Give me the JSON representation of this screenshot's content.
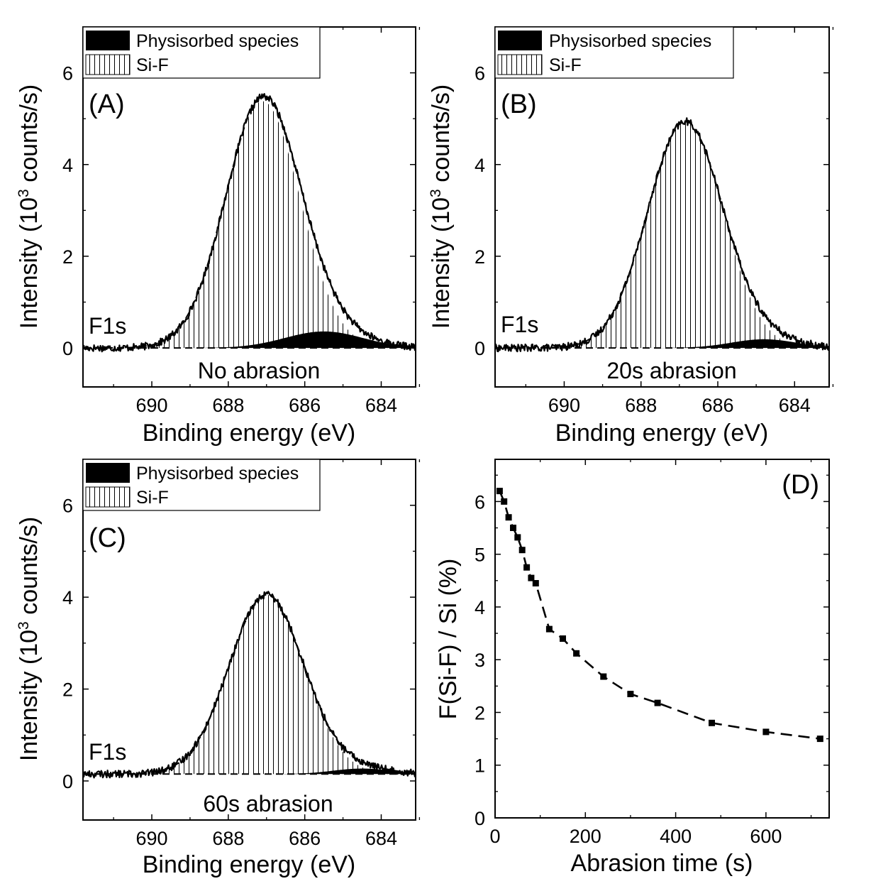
{
  "chart_data": [
    {
      "type": "area",
      "panel_label": "(A)",
      "spectrum_label": "F1s",
      "condition_label": "No abrasion",
      "xlabel": "Binding energy (eV)",
      "ylabel": {
        "prefix": "Intensity (10",
        "sup": "3",
        "suffix": " counts/s)"
      },
      "xlim": [
        691.8,
        683.1
      ],
      "ylim": [
        -0.85,
        7.0
      ],
      "xticks": [
        "690",
        "688",
        "686",
        "684"
      ],
      "yticks": [
        "0",
        "2",
        "4",
        "6"
      ],
      "legend": [
        "Physisorbed species",
        "Si-F"
      ],
      "series": [
        {
          "name": "Si-F",
          "center": 687.1,
          "height": 5.38,
          "fwhm": 2.3
        },
        {
          "name": "Physisorbed species",
          "center": 685.5,
          "height": 0.36,
          "fwhm": 2.4
        }
      ],
      "baseline": 0.0
    },
    {
      "type": "area",
      "panel_label": "(B)",
      "spectrum_label": "F1s",
      "condition_label": "20s abrasion",
      "xlabel": "Binding energy (eV)",
      "ylabel": {
        "prefix": "Intensity (10",
        "sup": "3",
        "suffix": " counts/s)"
      },
      "xlim": [
        691.8,
        683.1
      ],
      "ylim": [
        -0.85,
        7.0
      ],
      "xticks": [
        "690",
        "688",
        "686",
        "684"
      ],
      "yticks": [
        "0",
        "2",
        "4",
        "6"
      ],
      "legend": [
        "Physisorbed species",
        "Si-F"
      ],
      "series": [
        {
          "name": "Si-F",
          "center": 686.85,
          "height": 4.93,
          "fwhm": 2.3
        },
        {
          "name": "Physisorbed species",
          "center": 684.8,
          "height": 0.19,
          "fwhm": 2.0
        }
      ],
      "baseline": 0.0
    },
    {
      "type": "area",
      "panel_label": "(C)",
      "spectrum_label": "F1s",
      "condition_label": "60s abrasion",
      "xlabel": "Binding energy (eV)",
      "ylabel": {
        "prefix": "Intensity (10",
        "sup": "3",
        "suffix": " counts/s)"
      },
      "xlim": [
        691.8,
        683.1
      ],
      "ylim": [
        -0.85,
        7.0
      ],
      "xticks": [
        "690",
        "688",
        "686",
        "684"
      ],
      "yticks": [
        "0",
        "2",
        "4",
        "6"
      ],
      "legend": [
        "Physisorbed species",
        "Si-F"
      ],
      "series": [
        {
          "name": "Si-F",
          "center": 687.0,
          "height": 3.9,
          "fwhm": 2.3
        },
        {
          "name": "Physisorbed species",
          "center": 684.5,
          "height": 0.12,
          "fwhm": 1.8
        }
      ],
      "baseline": 0.15
    },
    {
      "type": "line",
      "panel_label": "(D)",
      "xlabel": "Abrasion time (s)",
      "ylabel": "F(Si-F) / Si (%)",
      "xlim": [
        0,
        740
      ],
      "ylim": [
        0,
        6.8
      ],
      "xticks": [
        0,
        200,
        400,
        600
      ],
      "yticks": [
        0,
        1,
        2,
        3,
        4,
        5,
        6
      ],
      "x": [
        10,
        20,
        30,
        40,
        50,
        60,
        70,
        80,
        90,
        120,
        150,
        180,
        240,
        300,
        360,
        480,
        600,
        720
      ],
      "y": [
        6.2,
        6.0,
        5.7,
        5.5,
        5.32,
        5.08,
        4.75,
        4.55,
        4.45,
        3.58,
        3.4,
        3.12,
        2.68,
        2.35,
        2.18,
        1.8,
        1.63,
        1.5
      ]
    }
  ]
}
